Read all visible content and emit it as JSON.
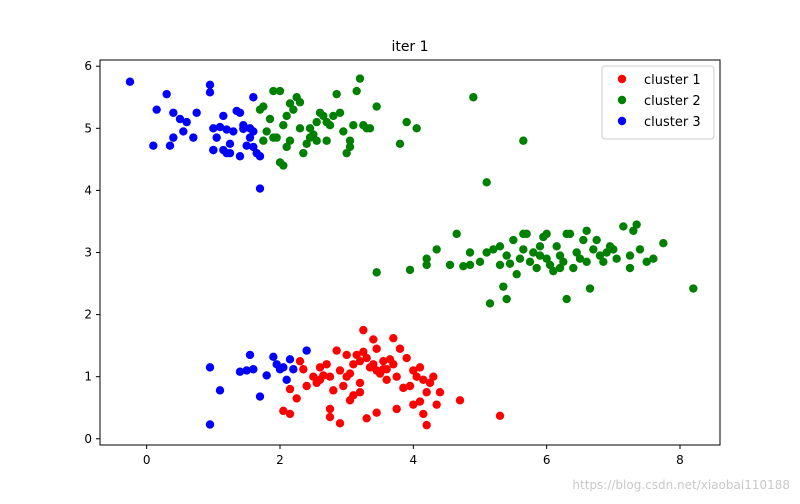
{
  "chart_data": {
    "type": "scatter",
    "title": "iter 1",
    "xlabel": "",
    "ylabel": "",
    "xlim": [
      -0.7,
      8.6
    ],
    "ylim": [
      -0.1,
      6.1
    ],
    "xticks": [
      0,
      2,
      4,
      6,
      8
    ],
    "yticks": [
      0,
      1,
      2,
      3,
      4,
      5,
      6
    ],
    "grid": false,
    "legend_position": "top-right",
    "series": [
      {
        "name": "cluster 1",
        "color": "#ff0000",
        "points": [
          [
            2.3,
            1.25
          ],
          [
            2.35,
            1.12
          ],
          [
            2.5,
            1.0
          ],
          [
            2.55,
            0.9
          ],
          [
            2.6,
            0.95
          ],
          [
            2.65,
            1.02
          ],
          [
            2.7,
            1.2
          ],
          [
            2.75,
            1.0
          ],
          [
            2.8,
            0.78
          ],
          [
            2.85,
            1.42
          ],
          [
            2.95,
            0.85
          ],
          [
            3.0,
            1.0
          ],
          [
            3.05,
            1.05
          ],
          [
            3.1,
            1.2
          ],
          [
            3.15,
            1.35
          ],
          [
            3.2,
            1.25
          ],
          [
            3.25,
            1.4
          ],
          [
            3.3,
            1.3
          ],
          [
            3.35,
            1.15
          ],
          [
            3.4,
            1.2
          ],
          [
            3.45,
            1.1
          ],
          [
            3.5,
            1.05
          ],
          [
            3.55,
            1.12
          ],
          [
            3.6,
            1.12
          ],
          [
            3.65,
            1.28
          ],
          [
            3.7,
            1.2
          ],
          [
            3.75,
            1.0
          ],
          [
            3.8,
            1.45
          ],
          [
            3.85,
            0.82
          ],
          [
            3.9,
            1.3
          ],
          [
            3.95,
            0.85
          ],
          [
            4.0,
            1.1
          ],
          [
            4.05,
            1.0
          ],
          [
            4.1,
            1.15
          ],
          [
            4.15,
            0.95
          ],
          [
            4.2,
            0.75
          ],
          [
            4.25,
            0.9
          ],
          [
            4.3,
            1.0
          ],
          [
            4.35,
            0.55
          ],
          [
            3.1,
            0.7
          ],
          [
            3.2,
            0.75
          ],
          [
            3.05,
            0.62
          ],
          [
            2.75,
            0.48
          ],
          [
            2.75,
            0.35
          ],
          [
            2.9,
            0.25
          ],
          [
            3.3,
            0.33
          ],
          [
            3.45,
            0.42
          ],
          [
            3.75,
            0.48
          ],
          [
            4.0,
            0.55
          ],
          [
            4.1,
            0.6
          ],
          [
            4.15,
            0.4
          ],
          [
            4.2,
            0.22
          ],
          [
            4.7,
            0.62
          ],
          [
            5.3,
            0.37
          ],
          [
            2.05,
            0.45
          ],
          [
            2.15,
            0.4
          ],
          [
            2.15,
            0.8
          ],
          [
            2.25,
            0.65
          ],
          [
            2.4,
            0.85
          ],
          [
            3.25,
            1.75
          ],
          [
            3.45,
            1.45
          ],
          [
            3.55,
            1.25
          ],
          [
            3.2,
            0.9
          ],
          [
            2.6,
            1.15
          ],
          [
            2.9,
            1.1
          ],
          [
            3.6,
            0.95
          ],
          [
            3.0,
            1.35
          ],
          [
            3.4,
            1.6
          ],
          [
            3.7,
            1.62
          ],
          [
            4.4,
            0.75
          ]
        ]
      },
      {
        "name": "cluster 2",
        "color": "#008000",
        "points": [
          [
            1.7,
            5.3
          ],
          [
            1.75,
            5.35
          ],
          [
            1.8,
            4.95
          ],
          [
            1.85,
            5.15
          ],
          [
            1.9,
            4.85
          ],
          [
            1.95,
            4.85
          ],
          [
            2.0,
            5.6
          ],
          [
            2.05,
            5.05
          ],
          [
            2.1,
            5.2
          ],
          [
            2.15,
            5.4
          ],
          [
            2.2,
            5.3
          ],
          [
            2.25,
            5.5
          ],
          [
            2.3,
            5.0
          ],
          [
            2.35,
            4.6
          ],
          [
            2.4,
            4.75
          ],
          [
            2.45,
            5.0
          ],
          [
            2.5,
            4.9
          ],
          [
            2.55,
            4.8
          ],
          [
            2.6,
            5.25
          ],
          [
            2.65,
            5.2
          ],
          [
            2.7,
            5.1
          ],
          [
            2.75,
            5.05
          ],
          [
            2.8,
            5.2
          ],
          [
            2.85,
            5.55
          ],
          [
            2.9,
            5.25
          ],
          [
            2.95,
            4.95
          ],
          [
            3.0,
            4.6
          ],
          [
            3.05,
            4.8
          ],
          [
            3.1,
            5.05
          ],
          [
            3.15,
            5.6
          ],
          [
            3.2,
            5.8
          ],
          [
            3.25,
            5.05
          ],
          [
            3.3,
            5.0
          ],
          [
            3.35,
            5.0
          ],
          [
            3.45,
            5.35
          ],
          [
            3.8,
            4.75
          ],
          [
            3.9,
            5.1
          ],
          [
            4.05,
            5.0
          ],
          [
            4.9,
            5.5
          ],
          [
            1.75,
            4.8
          ],
          [
            1.9,
            5.6
          ],
          [
            2.0,
            4.45
          ],
          [
            2.05,
            4.4
          ],
          [
            2.1,
            4.7
          ],
          [
            2.15,
            4.8
          ],
          [
            2.3,
            5.42
          ],
          [
            2.45,
            4.85
          ],
          [
            2.55,
            5.1
          ],
          [
            2.7,
            4.8
          ],
          [
            3.05,
            4.7
          ],
          [
            5.1,
            4.13
          ],
          [
            5.65,
            4.8
          ],
          [
            3.45,
            2.68
          ],
          [
            3.95,
            2.72
          ],
          [
            4.2,
            2.9
          ],
          [
            4.35,
            3.05
          ],
          [
            4.55,
            2.8
          ],
          [
            4.65,
            3.3
          ],
          [
            4.75,
            2.78
          ],
          [
            4.85,
            2.8
          ],
          [
            5.0,
            2.85
          ],
          [
            5.1,
            3.0
          ],
          [
            5.15,
            2.18
          ],
          [
            5.2,
            3.05
          ],
          [
            5.3,
            3.1
          ],
          [
            5.35,
            2.45
          ],
          [
            5.4,
            2.25
          ],
          [
            5.45,
            2.82
          ],
          [
            5.5,
            3.2
          ],
          [
            5.55,
            2.65
          ],
          [
            5.6,
            2.9
          ],
          [
            5.65,
            3.05
          ],
          [
            5.7,
            3.3
          ],
          [
            5.75,
            2.85
          ],
          [
            5.8,
            3.0
          ],
          [
            5.85,
            2.75
          ],
          [
            5.9,
            3.1
          ],
          [
            5.95,
            3.25
          ],
          [
            6.0,
            2.9
          ],
          [
            6.05,
            2.8
          ],
          [
            6.1,
            2.7
          ],
          [
            6.15,
            3.1
          ],
          [
            6.2,
            2.95
          ],
          [
            6.25,
            2.85
          ],
          [
            6.3,
            2.25
          ],
          [
            6.35,
            3.3
          ],
          [
            6.4,
            2.75
          ],
          [
            6.45,
            3.0
          ],
          [
            6.5,
            2.9
          ],
          [
            6.55,
            3.2
          ],
          [
            6.6,
            3.35
          ],
          [
            6.65,
            2.42
          ],
          [
            6.7,
            3.05
          ],
          [
            6.75,
            3.2
          ],
          [
            6.8,
            2.95
          ],
          [
            6.85,
            2.85
          ],
          [
            6.9,
            3.0
          ],
          [
            6.95,
            3.1
          ],
          [
            7.0,
            3.05
          ],
          [
            7.05,
            2.9
          ],
          [
            7.15,
            3.42
          ],
          [
            7.25,
            2.75
          ],
          [
            7.3,
            3.35
          ],
          [
            7.35,
            3.45
          ],
          [
            7.4,
            3.05
          ],
          [
            7.5,
            2.85
          ],
          [
            7.6,
            2.9
          ],
          [
            7.75,
            3.15
          ],
          [
            8.2,
            2.42
          ],
          [
            4.2,
            2.8
          ],
          [
            5.65,
            3.3
          ],
          [
            6.0,
            3.3
          ],
          [
            6.3,
            3.3
          ],
          [
            7.25,
            2.95
          ],
          [
            5.9,
            2.95
          ],
          [
            6.6,
            2.85
          ],
          [
            5.4,
            2.95
          ],
          [
            6.2,
            2.75
          ],
          [
            5.3,
            2.8
          ],
          [
            4.85,
            3.0
          ]
        ]
      },
      {
        "name": "cluster 3",
        "color": "#0000ff",
        "points": [
          [
            -0.25,
            5.75
          ],
          [
            0.15,
            5.3
          ],
          [
            0.3,
            5.55
          ],
          [
            0.4,
            5.25
          ],
          [
            0.5,
            5.15
          ],
          [
            0.55,
            4.95
          ],
          [
            0.6,
            5.1
          ],
          [
            0.7,
            4.85
          ],
          [
            0.75,
            5.25
          ],
          [
            0.4,
            4.85
          ],
          [
            0.1,
            4.72
          ],
          [
            0.35,
            4.72
          ],
          [
            0.95,
            5.7
          ],
          [
            0.95,
            5.58
          ],
          [
            1.0,
            5.0
          ],
          [
            1.0,
            4.65
          ],
          [
            1.05,
            4.85
          ],
          [
            1.1,
            5.02
          ],
          [
            1.15,
            5.2
          ],
          [
            1.2,
            4.6
          ],
          [
            1.25,
            4.75
          ],
          [
            1.3,
            4.95
          ],
          [
            1.35,
            5.28
          ],
          [
            1.4,
            4.55
          ],
          [
            1.4,
            5.25
          ],
          [
            1.45,
            5.05
          ],
          [
            1.5,
            4.72
          ],
          [
            1.55,
            4.85
          ],
          [
            1.55,
            5.0
          ],
          [
            1.6,
            4.95
          ],
          [
            1.65,
            4.6
          ],
          [
            1.7,
            4.55
          ],
          [
            1.7,
            4.03
          ],
          [
            1.25,
            4.6
          ],
          [
            1.45,
            4.99
          ],
          [
            1.6,
            5.5
          ],
          [
            1.6,
            4.7
          ],
          [
            1.0,
            4.65
          ],
          [
            1.15,
            4.65
          ],
          [
            1.2,
            4.98
          ],
          [
            0.95,
            1.15
          ],
          [
            1.1,
            0.78
          ],
          [
            1.4,
            1.08
          ],
          [
            1.5,
            1.1
          ],
          [
            1.55,
            1.35
          ],
          [
            1.6,
            1.12
          ],
          [
            1.7,
            0.68
          ],
          [
            1.8,
            1.02
          ],
          [
            1.9,
            1.32
          ],
          [
            1.95,
            1.2
          ],
          [
            2.0,
            1.12
          ],
          [
            2.05,
            1.15
          ],
          [
            2.1,
            0.95
          ],
          [
            2.15,
            1.28
          ],
          [
            2.2,
            1.12
          ],
          [
            2.4,
            1.42
          ],
          [
            0.95,
            0.23
          ]
        ]
      }
    ]
  },
  "watermark": "https://blog.csdn.net/xiaobai110188"
}
